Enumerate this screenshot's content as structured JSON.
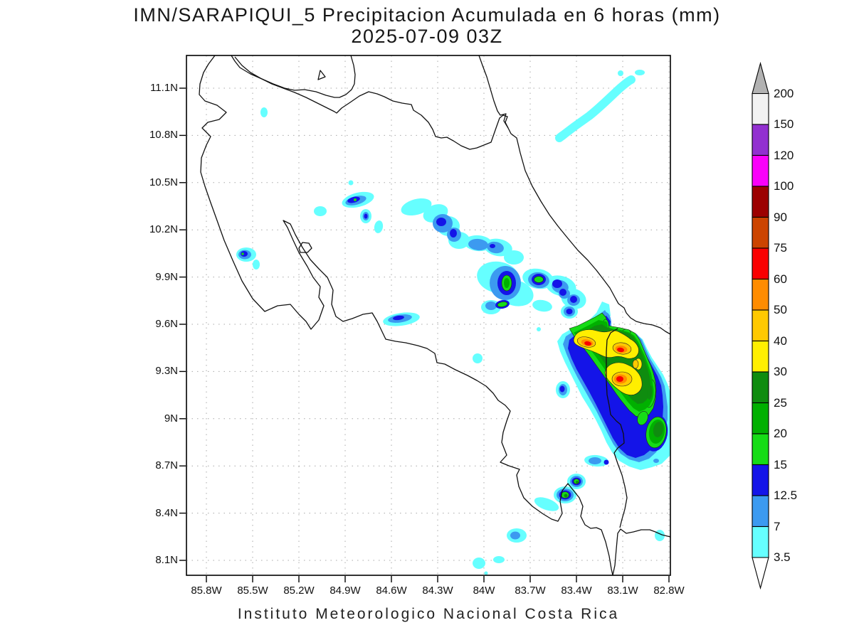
{
  "title": {
    "line1": "IMN/SARAPIQUI_5 Precipitacion Acumulada en 6 horas (mm)",
    "line2": "2025-07-09 03Z"
  },
  "footer": "Instituto Meteorologico Nacional Costa Rica",
  "axes": {
    "lat_ticks": [
      "11.1N",
      "10.8N",
      "10.5N",
      "10.2N",
      "9.9N",
      "9.6N",
      "9.3N",
      "9N",
      "8.7N",
      "8.4N",
      "8.1N"
    ],
    "lon_ticks": [
      "85.8W",
      "85.5W",
      "85.2W",
      "84.9W",
      "84.6W",
      "84.3W",
      "84W",
      "83.7W",
      "83.4W",
      "83.1W",
      "82.8W"
    ]
  },
  "colorbar": {
    "boundary_labels": [
      "200",
      "150",
      "120",
      "100",
      "90",
      "75",
      "60",
      "50",
      "40",
      "30",
      "25",
      "20",
      "15",
      "12.5",
      "7",
      "3.5"
    ],
    "cell_colors_top_to_bottom": [
      "#f2f2f2",
      "#9230d0",
      "#fa00fa",
      "#9c0000",
      "#cc4400",
      "#fa0000",
      "#ff8c00",
      "#ffc900",
      "#ffef00",
      "#0f8c0f",
      "#00b000",
      "#16dc16",
      "#1414e8",
      "#3c9af0",
      "#66ffff"
    ],
    "over_arrow_color": "#b2b2b2",
    "under_arrow_color": "#ffffff"
  },
  "palette": {
    "3.5": "#66ffff",
    "7": "#3c9af0",
    "12.5": "#1414e8",
    "15": "#16dc16",
    "20": "#00b000",
    "25": "#0f8c0f",
    "30": "#ffef00",
    "40": "#ffc900",
    "50": "#ff8c00",
    "60": "#fa0000",
    "75": "#cc4400",
    "90": "#9c0000",
    "100": "#fa00fa",
    "120": "#9230d0",
    "150": "#f2f2f2",
    "200": "#b2b2b2"
  },
  "chart_data": {
    "type": "heatmap",
    "subtype": "filled-contour-precipitation-map",
    "title": "IMN/SARAPIQUI_5 Precipitacion Acumulada en 6 horas (mm)",
    "valid_time": "2025-07-09 03Z",
    "units": "mm",
    "source_text": "Instituto Meteorologico Nacional Costa Rica",
    "lat_range": [
      "8.1N",
      "11.1N"
    ],
    "lon_range": [
      "85.8W",
      "82.8W"
    ],
    "contour_levels_mm": [
      3.5,
      7,
      12.5,
      15,
      20,
      25,
      30,
      40,
      50,
      60,
      75,
      90,
      100,
      120,
      150,
      200
    ],
    "max_shaded_level_on_map_mm": 60,
    "notable_features": [
      "Light cyan showers (3.5-7 mm) streaks near 10.9-11.1N 83.0-83.5W (Caribbean offshore)",
      "Scattered 7-15 mm cells near 10.35N 84.9W, 10.05N 85.5W and a NW-SE band from 10.3N 84.3W to 9.8N 83.6W",
      "Cells with 15-25 mm cores near 9.85N 83.8W and 9.9N 83.55W",
      "Main convective cluster 9.0-9.6N 82.8-83.3W with 30-75 mm cores (yellow/orange/red) over the Talamanca/Panama border area",
      "20-30 mm cells near 8.55N 83.4-83.5W (Osa Peninsula) and light echoes near 8.3N 83.7W and 8.15N 83.9W"
    ],
    "legend_position": "right",
    "grid": "dotted graticule every 0.3 degrees"
  }
}
